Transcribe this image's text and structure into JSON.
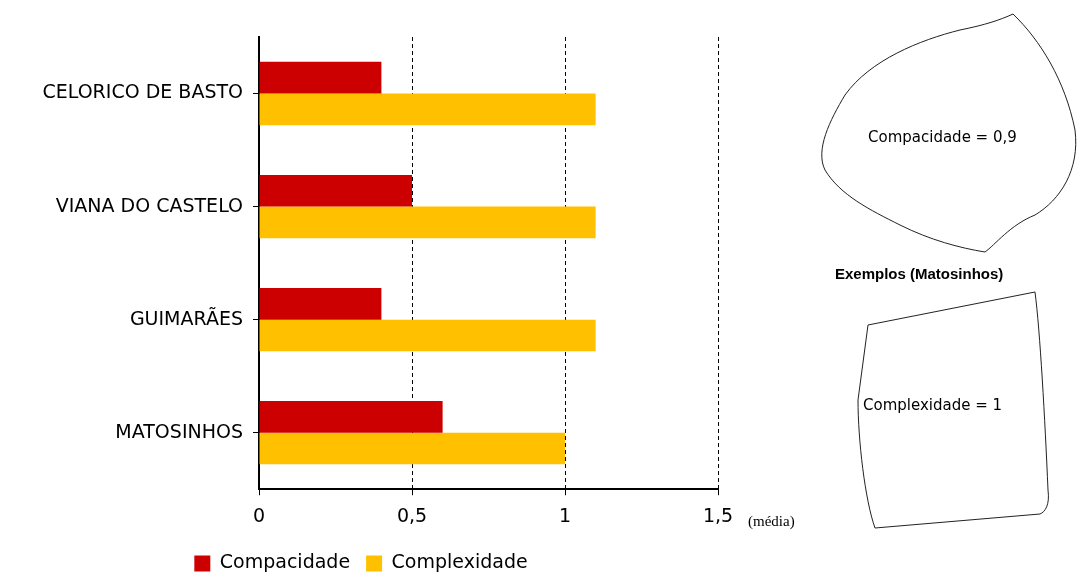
{
  "chart_data": {
    "type": "bar",
    "orientation": "horizontal",
    "categories": [
      "CELORICO DE BASTO",
      "VIANA DO CASTELO",
      "GUIMARÃES",
      "MATOSINHOS"
    ],
    "series": [
      {
        "name": "Compacidade",
        "color": "#cc0000",
        "values": [
          0.4,
          0.5,
          0.4,
          0.6
        ]
      },
      {
        "name": "Complexidade",
        "color": "#ffc000",
        "values": [
          1.1,
          1.1,
          1.1,
          1.0
        ]
      }
    ],
    "xlim": [
      0,
      1.5
    ],
    "xticks": [
      0,
      {
        "value": 0.5,
        "label": "0,5"
      },
      1,
      {
        "value": 1.5,
        "label": "1,5"
      }
    ],
    "xlabel": "(média)",
    "grid": "x",
    "legend": "bottom",
    "annotations": [
      "Compacidade = 0,9",
      "Exemplos (Matosinhos)",
      "Complexidade = 1"
    ]
  }
}
